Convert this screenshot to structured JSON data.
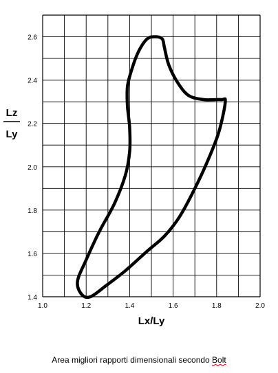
{
  "chart_data": {
    "type": "line",
    "title": "",
    "xlabel": "Lx/Ly",
    "ylabel": {
      "numerator": "Lz",
      "denominator": "Ly"
    },
    "xlim": [
      1.0,
      2.0
    ],
    "ylim": [
      1.4,
      2.7
    ],
    "grid": true,
    "x_ticks": [
      "1.0",
      "1.2",
      "1.4",
      "1.6",
      "1.8",
      "2.0"
    ],
    "y_ticks": [
      "1.4",
      "1.6",
      "1.8",
      "2.0",
      "2.2",
      "2.4",
      "2.6"
    ],
    "series": [
      {
        "closed": true,
        "color": "#000000",
        "points": [
          [
            1.52,
            2.6
          ],
          [
            1.48,
            2.59
          ],
          [
            1.44,
            2.53
          ],
          [
            1.41,
            2.45
          ],
          [
            1.39,
            2.37
          ],
          [
            1.39,
            2.28
          ],
          [
            1.4,
            2.18
          ],
          [
            1.4,
            2.07
          ],
          [
            1.38,
            1.96
          ],
          [
            1.33,
            1.83
          ],
          [
            1.26,
            1.7
          ],
          [
            1.2,
            1.57
          ],
          [
            1.16,
            1.47
          ],
          [
            1.18,
            1.41
          ],
          [
            1.22,
            1.4
          ],
          [
            1.29,
            1.45
          ],
          [
            1.38,
            1.52
          ],
          [
            1.48,
            1.61
          ],
          [
            1.56,
            1.68
          ],
          [
            1.63,
            1.77
          ],
          [
            1.7,
            1.9
          ],
          [
            1.76,
            2.03
          ],
          [
            1.81,
            2.16
          ],
          [
            1.84,
            2.3
          ],
          [
            1.82,
            2.31
          ],
          [
            1.74,
            2.31
          ],
          [
            1.67,
            2.33
          ],
          [
            1.62,
            2.39
          ],
          [
            1.58,
            2.47
          ],
          [
            1.56,
            2.55
          ],
          [
            1.55,
            2.59
          ]
        ]
      }
    ]
  },
  "caption": {
    "text": "Area migliori rapporti dimensionali secondo ",
    "underlined_word": "Bolt"
  }
}
